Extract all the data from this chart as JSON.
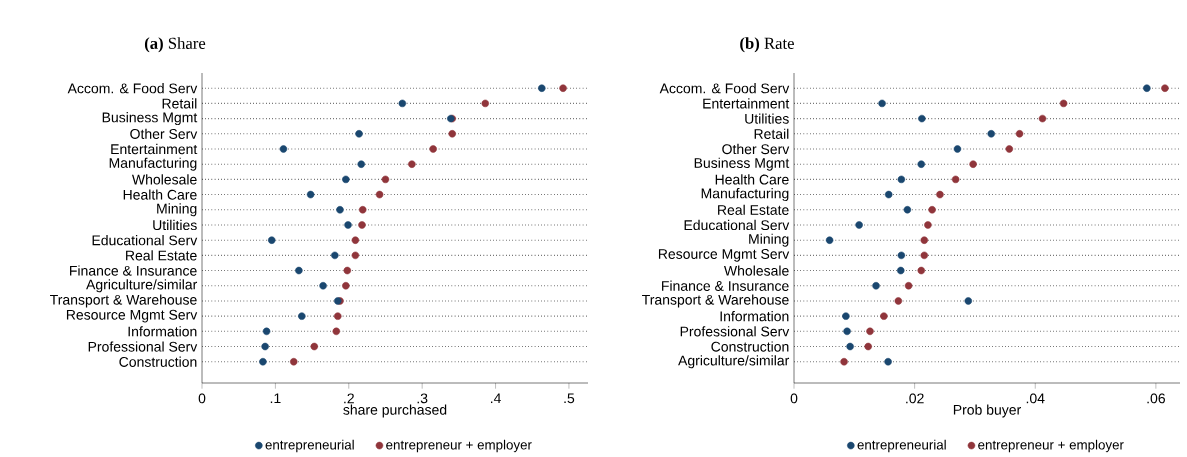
{
  "chart_data": [
    {
      "type": "scatter",
      "title": "**(a)** Share",
      "xlabel": "share purchased",
      "categories": [
        "Accom. & Food Serv",
        "Retail",
        "Business Mgmt",
        "Other Serv",
        "Entertainment",
        "Manufacturing",
        "Wholesale",
        "Health Care",
        "Mining",
        "Utilities",
        "Educational Serv",
        "Real Estate",
        "Finance & Insurance",
        "Agriculture/similar",
        "Transport & Warehouse",
        "Resource Mgmt Serv",
        "Information",
        "Professional Serv",
        "Construction"
      ],
      "series": [
        {
          "name": "entrepreneurial",
          "color": "#1a476f",
          "values": [
            0.463,
            0.273,
            0.339,
            0.214,
            0.111,
            0.217,
            0.196,
            0.148,
            0.188,
            0.199,
            0.095,
            0.181,
            0.132,
            0.165,
            0.185,
            0.136,
            0.088,
            0.086,
            0.083
          ]
        },
        {
          "name": "entrepreneur + employer",
          "color": "#90353b",
          "values": [
            0.492,
            0.386,
            0.341,
            0.341,
            0.315,
            0.286,
            0.25,
            0.242,
            0.219,
            0.218,
            0.209,
            0.209,
            0.198,
            0.196,
            0.188,
            0.185,
            0.183,
            0.153,
            0.125
          ]
        }
      ],
      "xlim": [
        0,
        0.526
      ],
      "xticks": [
        {
          "value": 0,
          "label": "0"
        },
        {
          "value": 0.1,
          "label": ".1"
        },
        {
          "value": 0.2,
          "label": ".2"
        },
        {
          "value": 0.3,
          "label": ".3"
        },
        {
          "value": 0.4,
          "label": ".4"
        },
        {
          "value": 0.5,
          "label": ".5"
        }
      ],
      "grid": "y",
      "legend": "bottom",
      "marker": "circle",
      "orientation": "horizontal"
    },
    {
      "type": "scatter",
      "title": "**(b)** Rate",
      "xlabel": "Prob buyer",
      "categories": [
        "Accom. & Food Serv",
        "Entertainment",
        "Utilities",
        "Retail",
        "Other Serv",
        "Business Mgmt",
        "Health Care",
        "Manufacturing",
        "Real Estate",
        "Educational Serv",
        "Mining",
        "Resource Mgmt Serv",
        "Wholesale",
        "Finance & Insurance",
        "Transport & Warehouse",
        "Information",
        "Professional Serv",
        "Construction",
        "Agriculture/similar"
      ],
      "series": [
        {
          "name": "entrepreneurial",
          "color": "#1a476f",
          "values": [
            0.0585,
            0.0146,
            0.0212,
            0.0327,
            0.0271,
            0.0211,
            0.0178,
            0.0157,
            0.0188,
            0.0108,
            0.0059,
            0.0178,
            0.0177,
            0.0136,
            0.0289,
            0.0086,
            0.0088,
            0.0093,
            0.0156
          ]
        },
        {
          "name": "entrepreneur + employer",
          "color": "#90353b",
          "values": [
            0.0615,
            0.0447,
            0.0412,
            0.0374,
            0.0357,
            0.0297,
            0.0268,
            0.0242,
            0.0229,
            0.0222,
            0.0216,
            0.0216,
            0.0211,
            0.019,
            0.0173,
            0.0149,
            0.0126,
            0.0123,
            0.0083
          ]
        }
      ],
      "xlim": [
        0,
        0.064
      ],
      "xticks": [
        {
          "value": 0,
          "label": "0"
        },
        {
          "value": 0.02,
          "label": ".02"
        },
        {
          "value": 0.04,
          "label": ".04"
        },
        {
          "value": 0.06,
          "label": ".06"
        }
      ],
      "grid": "y",
      "legend": "bottom",
      "marker": "circle",
      "orientation": "horizontal"
    }
  ]
}
